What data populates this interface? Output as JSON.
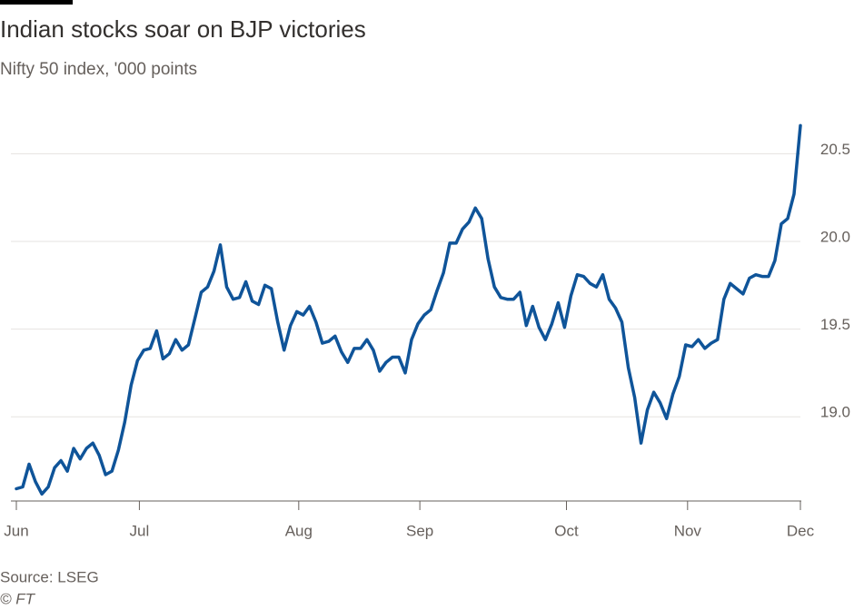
{
  "chart_data": {
    "type": "line",
    "title": "Indian stocks soar on BJP victories",
    "subtitle": "Nifty 50 index, '000 points",
    "source": "Source: LSEG",
    "credit": "© FT",
    "series": [
      {
        "color": "#0f5499",
        "values": [
          18.59,
          18.6,
          18.73,
          18.63,
          18.56,
          18.6,
          18.71,
          18.75,
          18.69,
          18.82,
          18.76,
          18.82,
          18.85,
          18.78,
          18.67,
          18.69,
          18.81,
          18.97,
          19.18,
          19.32,
          19.38,
          19.39,
          19.49,
          19.33,
          19.36,
          19.44,
          19.38,
          19.41,
          19.56,
          19.71,
          19.74,
          19.83,
          19.98,
          19.74,
          19.67,
          19.68,
          19.77,
          19.66,
          19.64,
          19.75,
          19.73,
          19.54,
          19.38,
          19.52,
          19.6,
          19.58,
          19.63,
          19.54,
          19.42,
          19.43,
          19.46,
          19.37,
          19.31,
          19.39,
          19.39,
          19.44,
          19.38,
          19.26,
          19.31,
          19.34,
          19.34,
          19.25,
          19.44,
          19.53,
          19.58,
          19.61,
          19.72,
          19.82,
          19.99,
          19.99,
          20.07,
          20.11,
          20.19,
          20.13,
          19.9,
          19.74,
          19.68,
          19.67,
          19.67,
          19.71,
          19.52,
          19.63,
          19.51,
          19.44,
          19.53,
          19.65,
          19.51,
          19.69,
          19.81,
          19.8,
          19.76,
          19.74,
          19.81,
          19.67,
          19.62,
          19.54,
          19.28,
          19.11,
          18.85,
          19.04,
          19.14,
          19.08,
          18.99,
          19.13,
          19.23,
          19.41,
          19.4,
          19.44,
          19.39,
          19.42,
          19.44,
          19.67,
          19.76,
          19.73,
          19.7,
          19.79,
          19.81,
          19.8,
          19.8,
          19.89,
          20.1,
          20.13,
          20.27,
          20.66
        ]
      }
    ],
    "xlim": [
      0,
      123
    ],
    "xticks": [
      {
        "value": 0,
        "label": "Jun"
      },
      {
        "value": 19.3,
        "label": "Jul"
      },
      {
        "value": 44.3,
        "label": "Aug"
      },
      {
        "value": 63.3,
        "label": "Sep"
      },
      {
        "value": 86.3,
        "label": "Oct"
      },
      {
        "value": 105.3,
        "label": "Nov"
      },
      {
        "value": 123,
        "label": "Dec"
      }
    ],
    "ylim": [
      18.52,
      20.75
    ],
    "yticks": [
      {
        "value": 19,
        "label": "19.0"
      },
      19.5,
      {
        "value": 20,
        "label": "20.0"
      },
      20.5
    ],
    "grid": true
  }
}
